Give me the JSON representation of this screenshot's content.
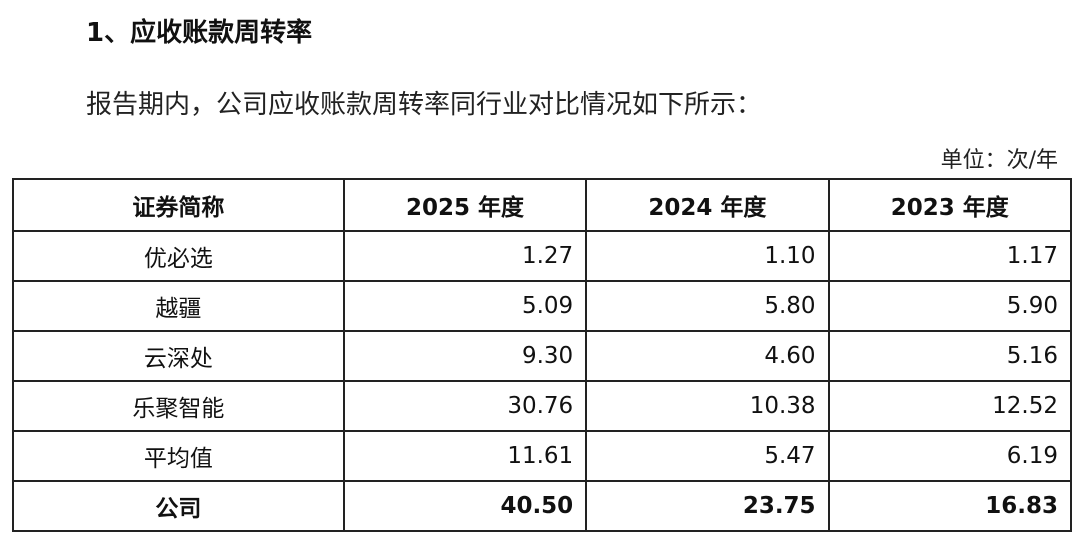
{
  "heading": "1、应收账款周转率",
  "intro": "报告期内，公司应收账款周转率同行业对比情况如下所示：",
  "unit": "单位：次/年",
  "table": {
    "header": [
      "证券简称",
      "2025 年度",
      "2024 年度",
      "2023 年度"
    ],
    "rows": [
      [
        "优必选",
        "1.27",
        "1.10",
        "1.17"
      ],
      [
        "越疆",
        "5.09",
        "5.80",
        "5.90"
      ],
      [
        "云深处",
        "9.30",
        "4.60",
        "5.16"
      ],
      [
        "乐聚智能",
        "30.76",
        "10.38",
        "12.52"
      ],
      [
        "平均值",
        "11.61",
        "5.47",
        "6.19"
      ],
      [
        "公司",
        "40.50",
        "23.75",
        "16.83"
      ]
    ]
  }
}
